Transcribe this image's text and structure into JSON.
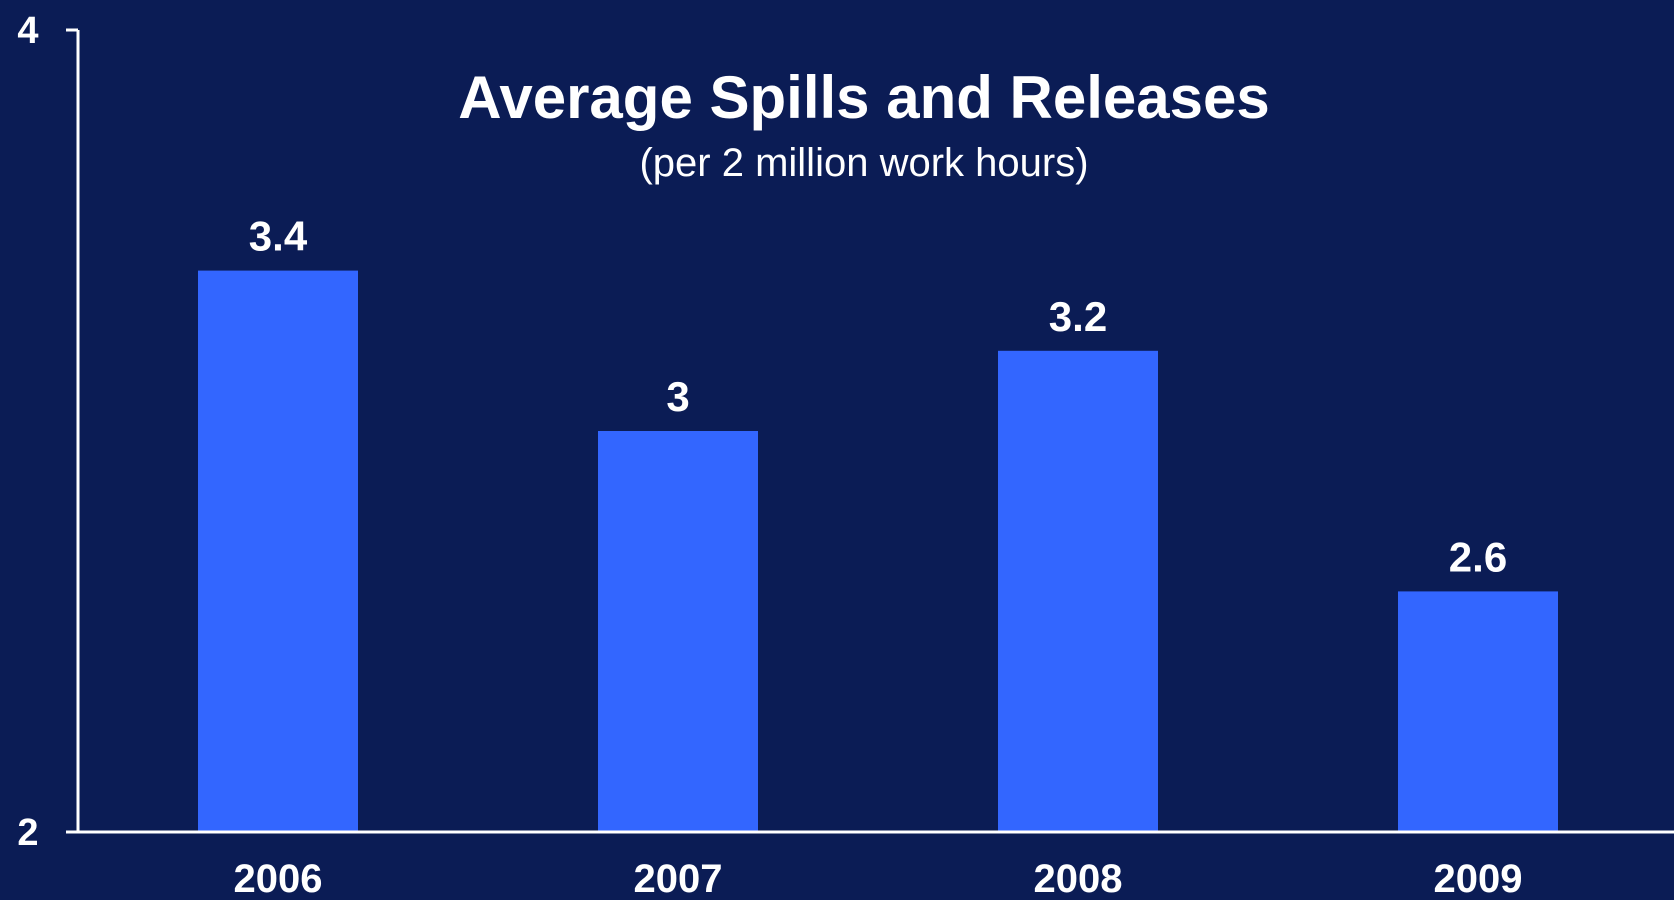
{
  "chart_data": {
    "type": "bar",
    "title": "Average Spills and Releases",
    "subtitle": "(per 2 million work hours)",
    "categories": [
      "2006",
      "2007",
      "2008",
      "2009"
    ],
    "values": [
      3.4,
      3,
      3.2,
      2.6
    ],
    "data_labels": [
      "3.4",
      "3",
      "3.2",
      "2.6"
    ],
    "ylim": [
      2,
      4
    ],
    "yticks": [
      2,
      4
    ],
    "ytick_labels": [
      "2",
      "4"
    ],
    "xlabel": "",
    "ylabel": "",
    "grid": false,
    "legend": "none"
  },
  "colors": {
    "background": "#0b1c55",
    "bar": "#3366ff",
    "axis": "#ffffff",
    "text": "#ffffff"
  }
}
